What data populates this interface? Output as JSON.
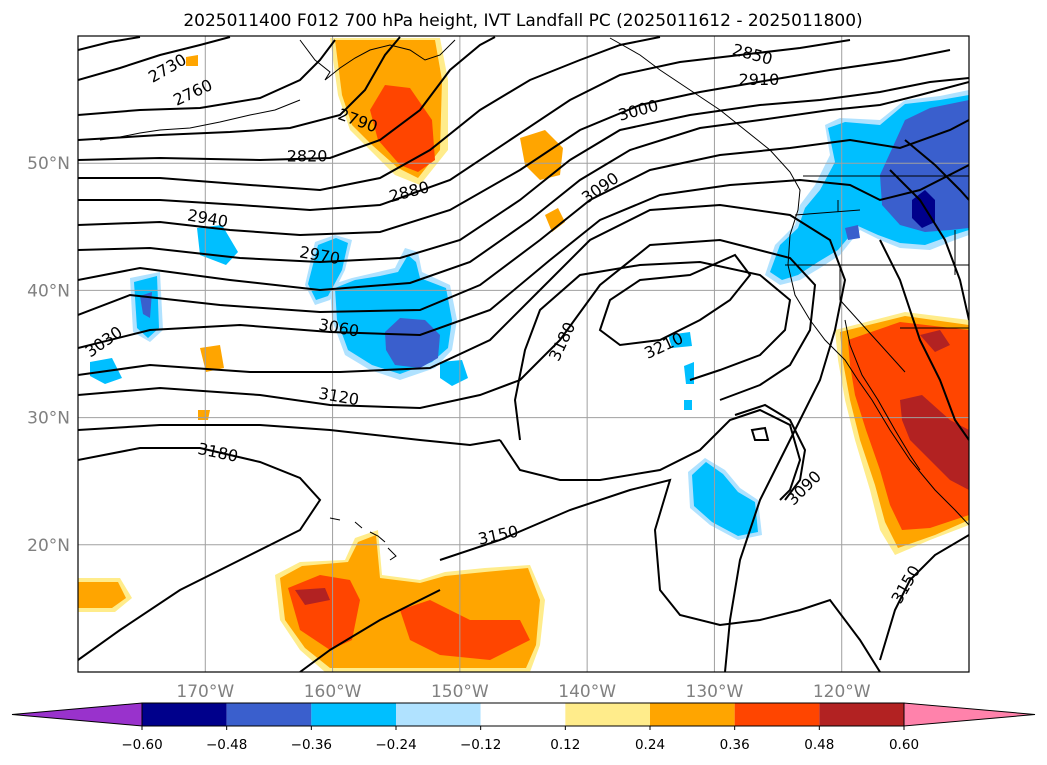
{
  "chart_data": {
    "type": "map-contour",
    "title": "2025011400 F012 700 hPa height, IVT Landfall PC (2025011612 - 2025011800)",
    "lon_range": [
      180,
      -110
    ],
    "lat_range": [
      10,
      60
    ],
    "lon_ticks": [
      {
        "value": -170,
        "label": "170°W"
      },
      {
        "value": -160,
        "label": "160°W"
      },
      {
        "value": -150,
        "label": "150°W"
      },
      {
        "value": -140,
        "label": "140°W"
      },
      {
        "value": -130,
        "label": "130°W"
      },
      {
        "value": -120,
        "label": "120°W"
      }
    ],
    "lat_ticks": [
      {
        "value": 20,
        "label": "20°N"
      },
      {
        "value": 30,
        "label": "30°N"
      },
      {
        "value": 40,
        "label": "40°N"
      },
      {
        "value": 50,
        "label": "50°N"
      }
    ],
    "grid": true,
    "colorbar": {
      "orientation": "horizontal",
      "extend": "both",
      "bounds": [
        -0.72,
        -0.6,
        -0.48,
        -0.36,
        -0.24,
        -0.12,
        0.12,
        0.24,
        0.36,
        0.48,
        0.6,
        0.72
      ],
      "colors": [
        "#9932cc",
        "#00008b",
        "#3a5fcd",
        "#00bfff",
        "#b0e2ff",
        "#ffffff",
        "#ffec8b",
        "#ffa500",
        "#ff4500",
        "#b22222",
        "#ff82ab"
      ],
      "tick_labels": [
        "−0.60",
        "−0.48",
        "−0.36",
        "−0.24",
        "−0.12",
        "0.12",
        "0.24",
        "0.36",
        "0.48",
        "0.60"
      ]
    },
    "height_contour_labels": [
      "2730",
      "2760",
      "2790",
      "2820",
      "2850",
      "2880",
      "2910",
      "2940",
      "2970",
      "3000",
      "3030",
      "3060",
      "3090",
      "3120",
      "3150",
      "3180",
      "3210"
    ],
    "contour_labels": [
      {
        "text": "2730",
        "lon": -173.0,
        "lat": 57.5,
        "angle": -30
      },
      {
        "text": "2760",
        "lon": -171.0,
        "lat": 55.6,
        "angle": -25
      },
      {
        "text": "2790",
        "lon": -158.0,
        "lat": 53.4,
        "angle": 20
      },
      {
        "text": "2820",
        "lon": -162.0,
        "lat": 50.6,
        "angle": 0
      },
      {
        "text": "2850",
        "lon": -127.0,
        "lat": 58.6,
        "angle": 15
      },
      {
        "text": "2880",
        "lon": -154.0,
        "lat": 47.8,
        "angle": -15
      },
      {
        "text": "2910",
        "lon": -126.5,
        "lat": 56.6,
        "angle": 0
      },
      {
        "text": "2940",
        "lon": -169.8,
        "lat": 45.7,
        "angle": 10
      },
      {
        "text": "2970",
        "lon": -161.0,
        "lat": 42.8,
        "angle": 10
      },
      {
        "text": "3000",
        "lon": -136.0,
        "lat": 54.2,
        "angle": -15
      },
      {
        "text": "3030",
        "lon": -178.0,
        "lat": 36.0,
        "angle": -35
      },
      {
        "text": "3060",
        "lon": -159.5,
        "lat": 37.1,
        "angle": 10
      },
      {
        "text": "3090",
        "lon": -139.0,
        "lat": 48.1,
        "angle": -35
      },
      {
        "text": "3090",
        "lon": -123.0,
        "lat": 24.5,
        "angle": -45
      },
      {
        "text": "3120",
        "lon": -159.5,
        "lat": 31.7,
        "angle": 10
      },
      {
        "text": "3150",
        "lon": -147.0,
        "lat": 20.8,
        "angle": -12
      },
      {
        "text": "3150",
        "lon": -115.0,
        "lat": 16.9,
        "angle": -60
      },
      {
        "text": "3180",
        "lon": -169.0,
        "lat": 27.3,
        "angle": 12
      },
      {
        "text": "3180",
        "lon": -142.0,
        "lat": 36.0,
        "angle": -65
      },
      {
        "text": "3210",
        "lon": -134.0,
        "lat": 35.7,
        "angle": -25
      }
    ]
  }
}
